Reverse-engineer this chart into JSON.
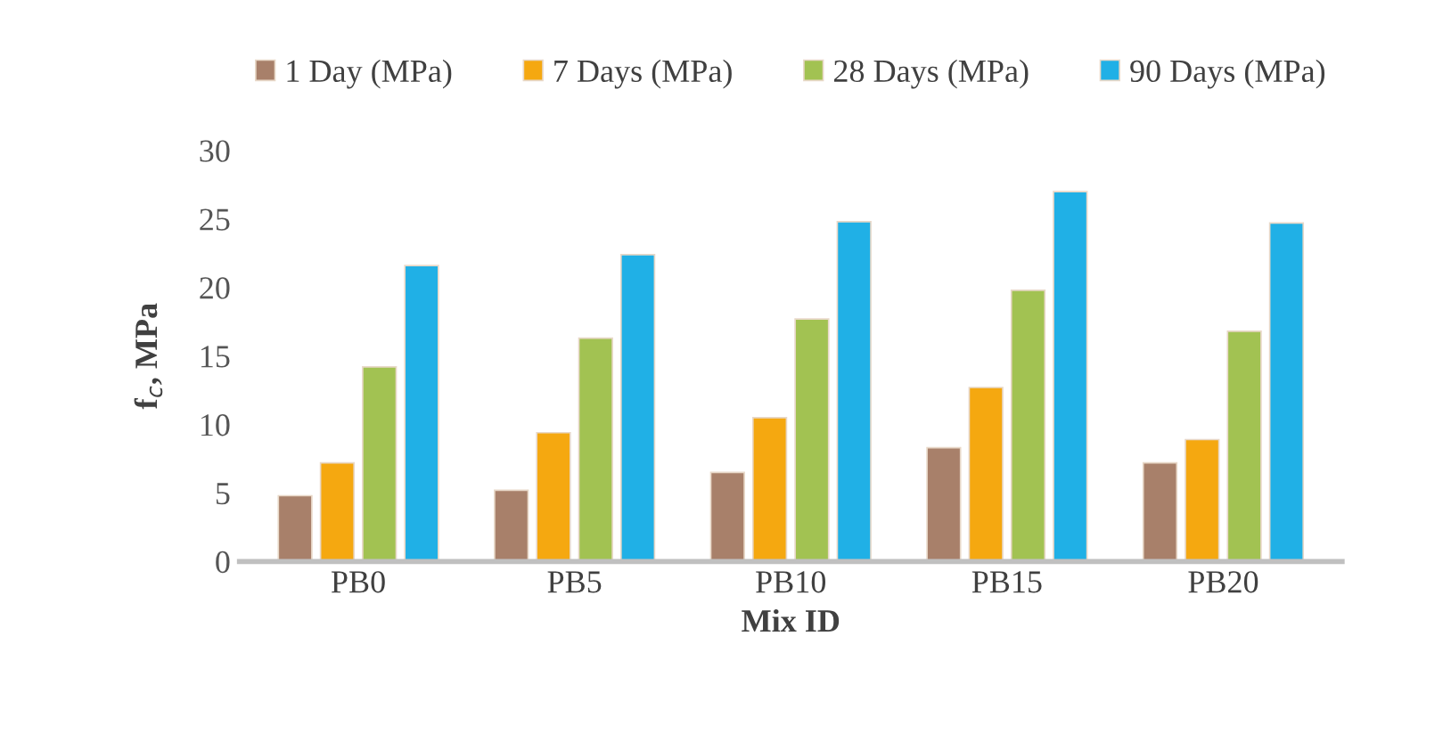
{
  "chart_data": {
    "type": "bar",
    "xlabel": "Mix ID",
    "ylabel": "f$_{c}$, MPa",
    "categories": [
      "PB0",
      "PB5",
      "PB10",
      "PB15",
      "PB20"
    ],
    "series": [
      {
        "name": "1 Day (MPa)",
        "color": "#a8806a",
        "values": [
          4.8,
          5.2,
          6.5,
          8.3,
          7.2
        ]
      },
      {
        "name": "7 Days (MPa)",
        "color": "#f5a810",
        "values": [
          7.2,
          9.4,
          10.5,
          12.7,
          8.9
        ]
      },
      {
        "name": "28 Days (MPa)",
        "color": "#a2c252",
        "values": [
          14.2,
          16.3,
          17.7,
          19.8,
          16.8
        ]
      },
      {
        "name": "90 Days (MPa)",
        "color": "#20b0e6",
        "values": [
          21.6,
          22.4,
          24.8,
          27.0,
          24.7
        ]
      }
    ],
    "ylim": [
      0,
      30
    ],
    "yticks": [
      0,
      5,
      10,
      15,
      20,
      25,
      30
    ],
    "grid": false,
    "legend": "top"
  }
}
